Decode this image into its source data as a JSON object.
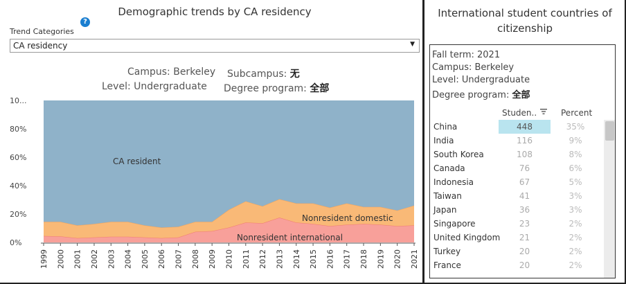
{
  "left": {
    "title": "Demographic trends by CA residency",
    "trend_label": "Trend Categories",
    "select_value": "CA residency",
    "meta": {
      "campus_label": "Campus:",
      "campus_value": "Berkeley",
      "subcampus_label": "Subcampus:",
      "subcampus_value": "无",
      "level_label": "Level:",
      "level_value": "Undergraduate",
      "degree_label": "Degree program:",
      "degree_value": "全部"
    }
  },
  "chart_data": {
    "type": "area",
    "stacked": true,
    "x": [
      1999,
      2000,
      2001,
      2002,
      2003,
      2004,
      2005,
      2006,
      2007,
      2008,
      2009,
      2010,
      2011,
      2012,
      2013,
      2014,
      2015,
      2016,
      2017,
      2018,
      2019,
      2020,
      2021
    ],
    "series": [
      {
        "name": "Nonresident international",
        "values": [
          4.5,
          4.3,
          3.0,
          3.5,
          4.0,
          4.0,
          3.5,
          3.0,
          3.5,
          7.5,
          8.0,
          10.5,
          14.0,
          13.5,
          17.5,
          14.0,
          13.0,
          11.5,
          12.5,
          13.0,
          12.5,
          11.5,
          12.0
        ]
      },
      {
        "name": "Nonresident domestic",
        "values": [
          10.0,
          10.2,
          9.0,
          9.5,
          10.5,
          10.5,
          8.5,
          7.5,
          7.5,
          7.0,
          6.5,
          12.5,
          15.0,
          12.0,
          13.0,
          13.5,
          14.5,
          13.0,
          15.0,
          12.0,
          12.5,
          11.0,
          14.0
        ]
      },
      {
        "name": "CA resident",
        "values": [
          85.5,
          85.5,
          88.0,
          87.0,
          85.5,
          85.5,
          88.0,
          89.5,
          89.0,
          85.5,
          85.5,
          77.0,
          71.0,
          74.5,
          69.5,
          72.5,
          72.5,
          75.5,
          72.5,
          75.0,
          75.0,
          77.5,
          74.0
        ]
      }
    ],
    "colors": {
      "Nonresident international": "#f8a09a",
      "Nonresident domestic": "#f9b977",
      "CA resident": "#8fb2c9"
    },
    "y_ticks": [
      "0%",
      "20%",
      "40%",
      "60%",
      "80%",
      "10..."
    ],
    "ylim": [
      0,
      100
    ],
    "labels": {
      "ca_resident": "CA resident",
      "nonresident_domestic": "Nonresident domestic",
      "nonresident_international": "Nonresident international"
    }
  },
  "right": {
    "title_line1": "International student countries of",
    "title_line2": "citizenship",
    "filters": {
      "term_label": "Fall term:",
      "term_value": "2021",
      "campus_label": "Campus:",
      "campus_value": "Berkeley",
      "level_label": "Level:",
      "level_value": "Undergraduate",
      "degree_label": "Degree program:",
      "degree_value": "全部"
    },
    "headers": {
      "students": "Studen..",
      "percent": "Percent"
    },
    "rows": [
      {
        "country": "China",
        "students": "448",
        "percent": "35%"
      },
      {
        "country": "India",
        "students": "116",
        "percent": "9%"
      },
      {
        "country": "South Korea",
        "students": "108",
        "percent": "8%"
      },
      {
        "country": "Canada",
        "students": "76",
        "percent": "6%"
      },
      {
        "country": "Indonesia",
        "students": "67",
        "percent": "5%"
      },
      {
        "country": "Taiwan",
        "students": "41",
        "percent": "3%"
      },
      {
        "country": "Japan",
        "students": "36",
        "percent": "3%"
      },
      {
        "country": "Singapore",
        "students": "23",
        "percent": "2%"
      },
      {
        "country": "United Kingdom",
        "students": "21",
        "percent": "2%"
      },
      {
        "country": "Turkey",
        "students": "20",
        "percent": "2%"
      },
      {
        "country": "France",
        "students": "20",
        "percent": "2%"
      }
    ]
  }
}
